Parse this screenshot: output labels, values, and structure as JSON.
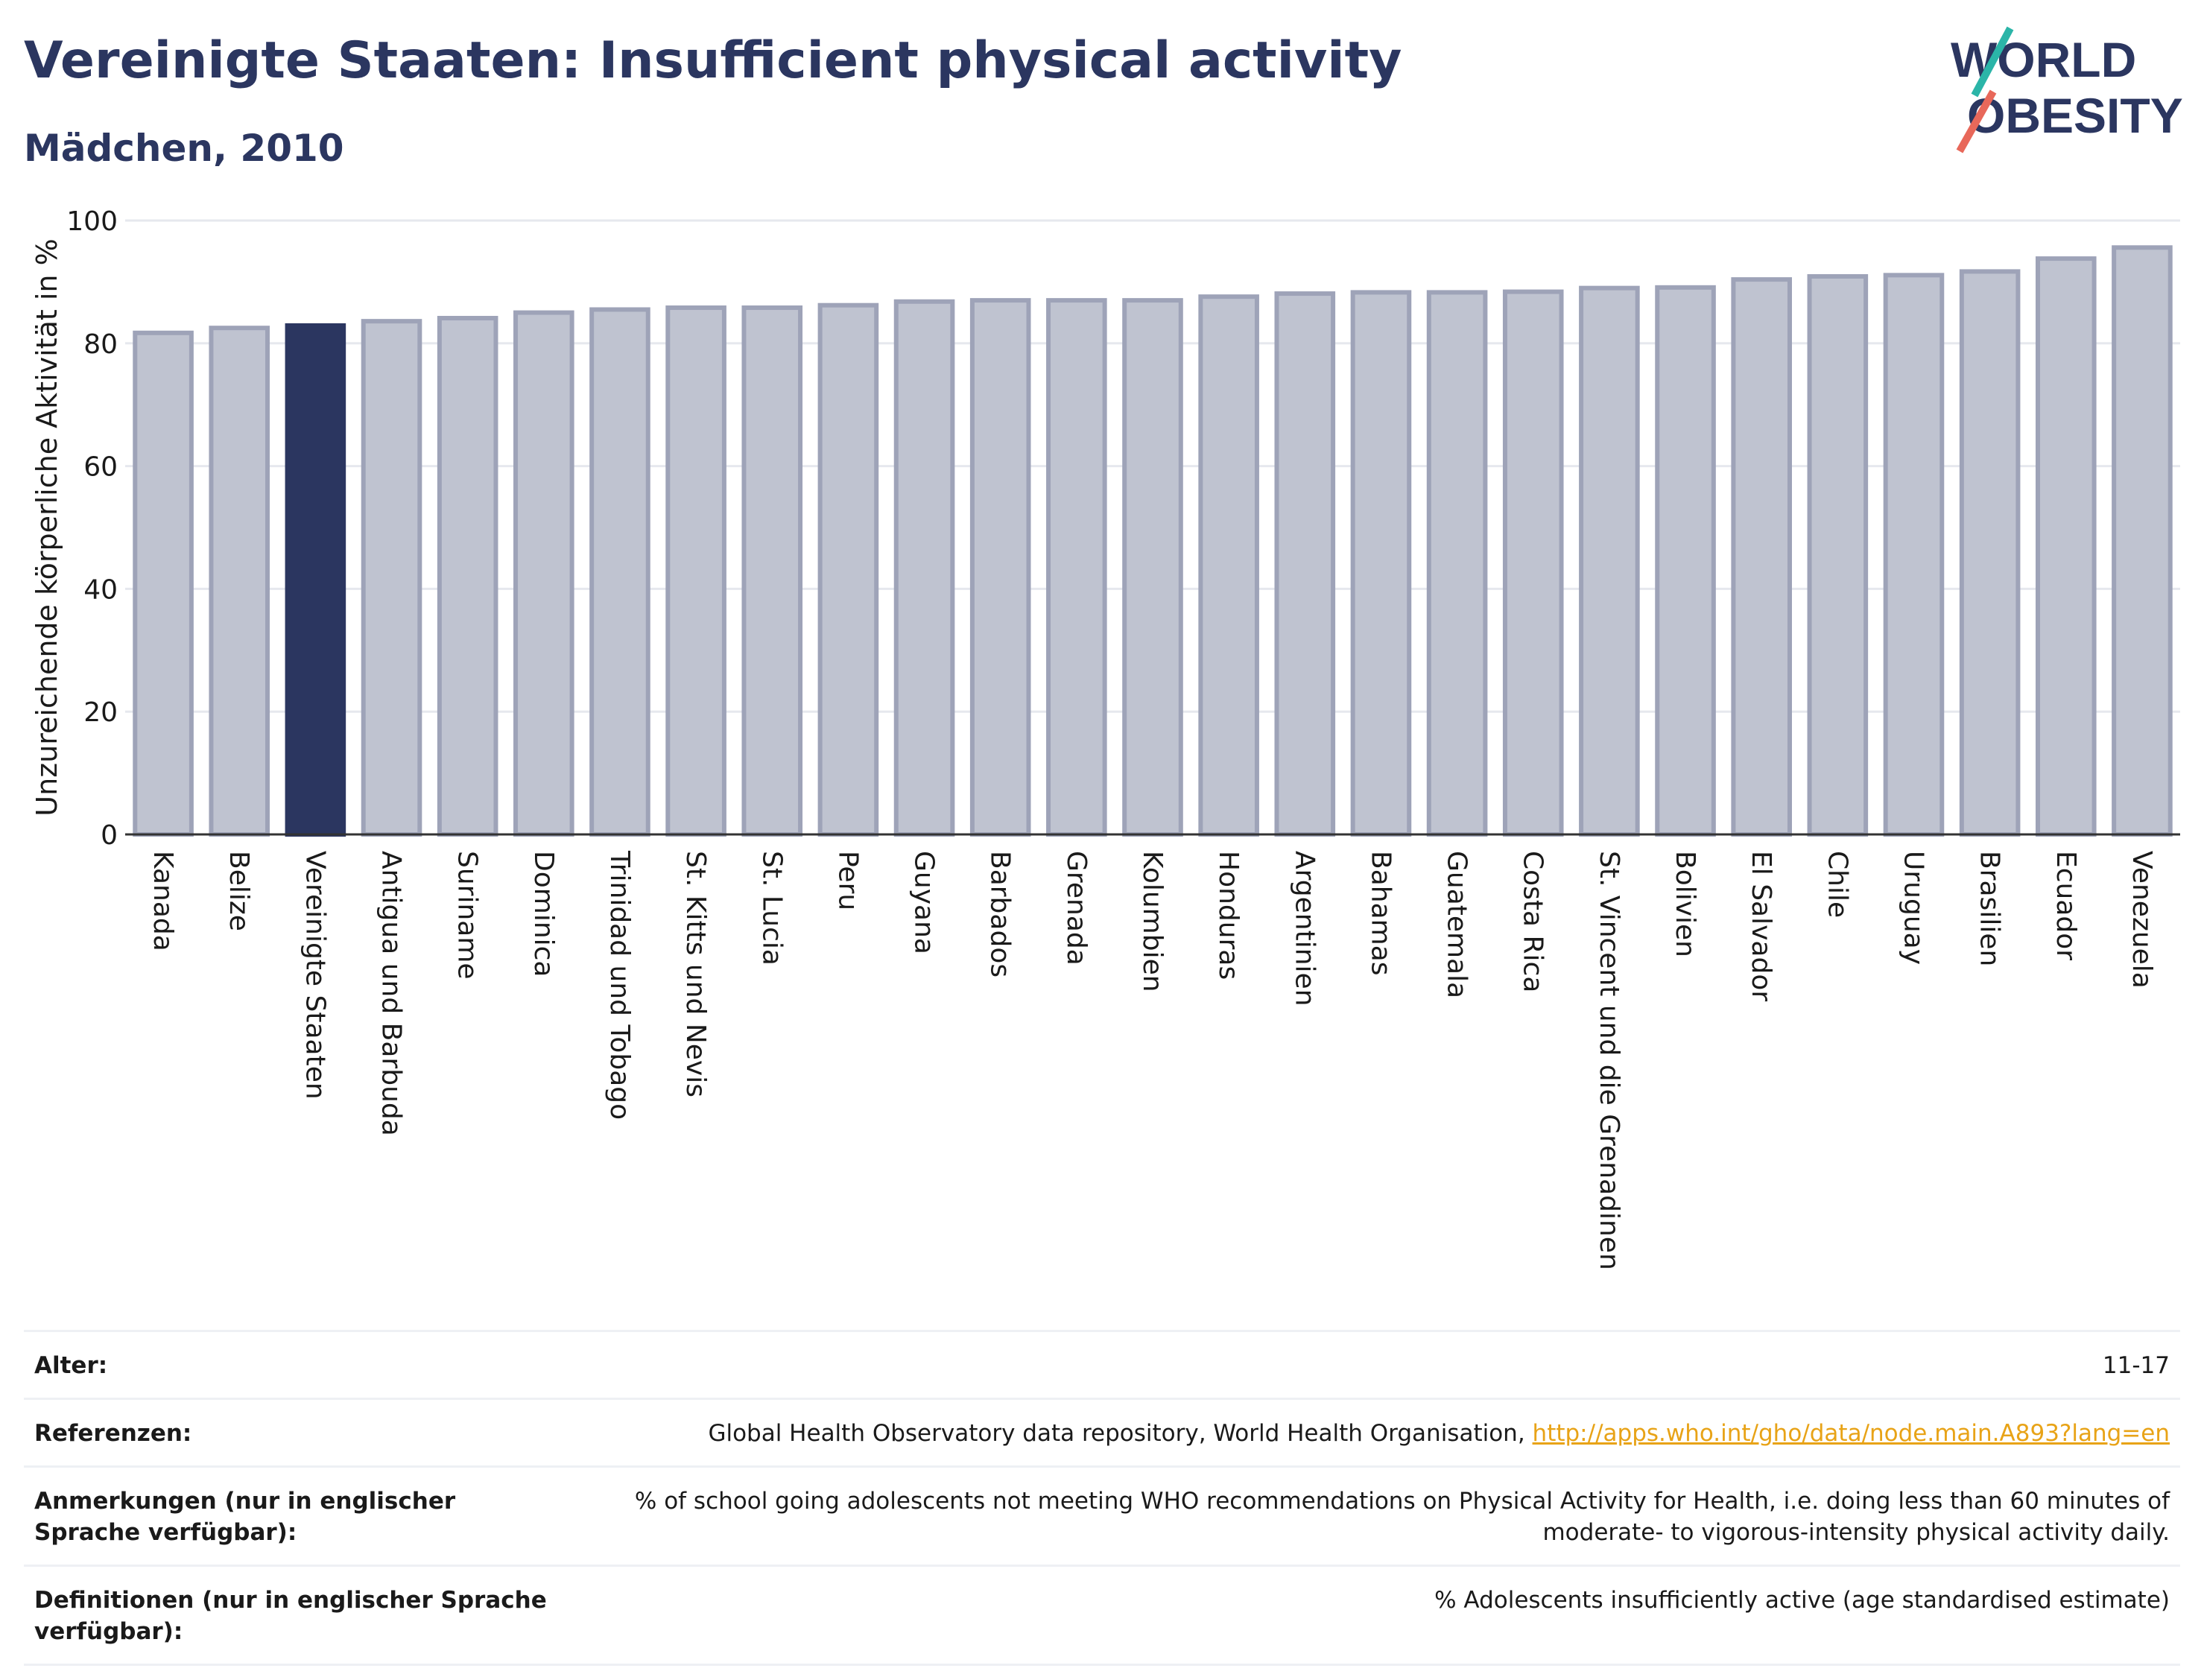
{
  "header": {
    "title": "Vereinigte Staaten: Insufficient physical activity",
    "subtitle": "Mädchen, 2010"
  },
  "logo": {
    "line1": "WORLD",
    "line2": "OBESITY"
  },
  "colors": {
    "bar": "#bfc3d0",
    "bar_border": "#9ea3b8",
    "highlight": "#2b3660",
    "grid": "#e6e8ee",
    "text": "#1a1a1a",
    "link": "#e8a317"
  },
  "chart_data": {
    "type": "bar",
    "ylabel": "Unzureichende körperliche Aktivität in %",
    "ylim": [
      0,
      100
    ],
    "yticks": [
      0,
      20,
      40,
      60,
      80,
      100
    ],
    "highlight": "Vereinigte Staaten",
    "grid": true,
    "categories": [
      "Kanada",
      "Belize",
      "Vereinigte Staaten",
      "Antigua und Barbuda",
      "Suriname",
      "Dominica",
      "Trinidad und Tobago",
      "St. Kitts und Nevis",
      "St. Lucia",
      "Peru",
      "Guyana",
      "Barbados",
      "Grenada",
      "Kolumbien",
      "Honduras",
      "Argentinien",
      "Bahamas",
      "Guatemala",
      "Costa Rica",
      "St. Vincent und die Grenadinen",
      "Bolivien",
      "El Salvador",
      "Chile",
      "Uruguay",
      "Brasilien",
      "Ecuador",
      "Venezuela"
    ],
    "values": [
      81.7,
      82.5,
      82.9,
      83.6,
      84.1,
      85.0,
      85.5,
      85.8,
      85.8,
      86.2,
      86.8,
      87.0,
      87.0,
      87.0,
      87.6,
      88.1,
      88.3,
      88.3,
      88.4,
      89.0,
      89.1,
      90.4,
      90.9,
      91.1,
      91.7,
      93.8,
      95.6
    ]
  },
  "meta": {
    "age_label": "Alter:",
    "age_value": "11-17",
    "refs_label": "Referenzen:",
    "refs_text": "Global Health Observatory data repository, World Health Organisation, ",
    "refs_link": "http://apps.who.int/gho/data/node.main.A893?lang=en",
    "notes_label": "Anmerkungen (nur in englischer Sprache verfügbar):",
    "notes_value": "% of school going adolescents not meeting WHO recommendations on Physical Activity for Health, i.e. doing less than 60 minutes of moderate- to vigorous-intensity physical activity daily.",
    "defs_label": "Definitionen (nur in englischer Sprache verfügbar):",
    "defs_value": "% Adolescents insufficiently active (age standardised estimate)"
  }
}
